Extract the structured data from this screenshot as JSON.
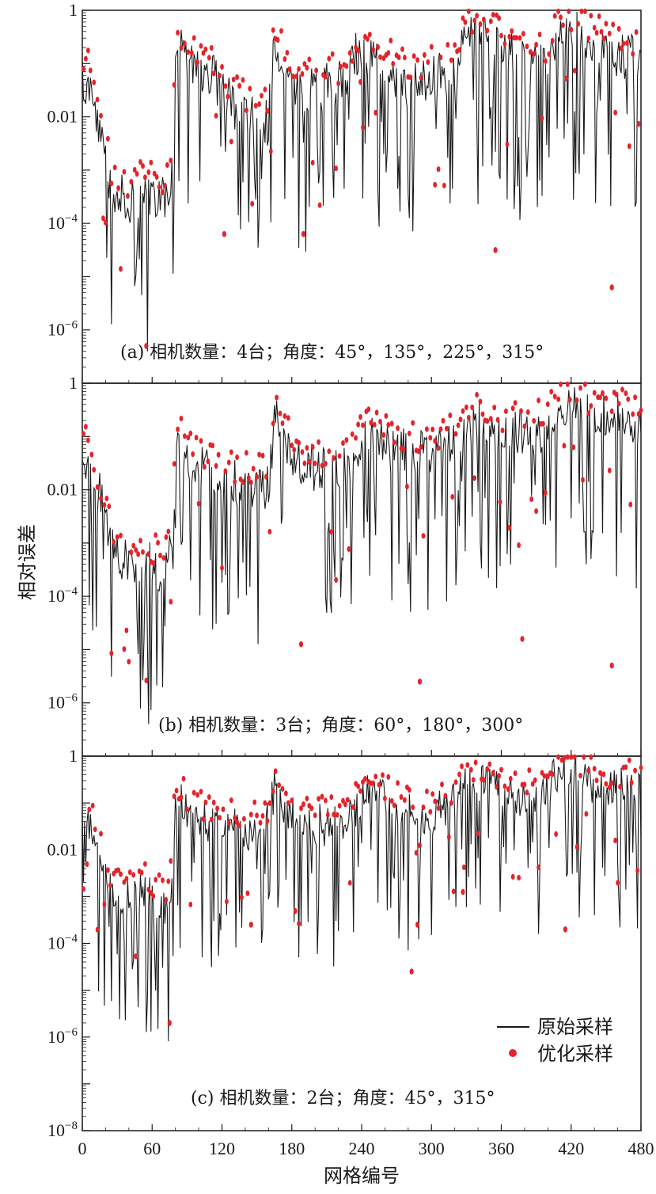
{
  "chart_data": {
    "type": "line",
    "ylabel": "相对误差",
    "xlabel": "网格编号",
    "x_ticks": [
      "0",
      "60",
      "120",
      "180",
      "240",
      "300",
      "360",
      "420",
      "480"
    ],
    "xlim": [
      0,
      480
    ],
    "yscale": "log",
    "legend": {
      "position": "bottom-right of panel (c)",
      "entries": [
        {
          "name": "原始采样",
          "style": "line",
          "color": "#1a1a1a"
        },
        {
          "name": "优化采样",
          "style": "dot",
          "color": "#e3242b"
        }
      ]
    },
    "panels": [
      {
        "id": "a",
        "caption": "(a) 相机数量：4台；角度：45°，135°，225°，315°",
        "ylim_exponent": [
          -7,
          0
        ],
        "y_ticks": [
          {
            "exp": 0,
            "text": "1"
          },
          {
            "exp": -2,
            "text": "0.01"
          },
          {
            "exp": -4,
            "base": "10",
            "sup": "−4"
          },
          {
            "exp": -6,
            "base": "10",
            "sup": "−6"
          }
        ],
        "original_envelope_log10": [
          [
            0,
            -1.1
          ],
          [
            8,
            -1.5
          ],
          [
            15,
            -2.0
          ],
          [
            25,
            -3.3
          ],
          [
            40,
            -3.5
          ],
          [
            55,
            -3.3
          ],
          [
            70,
            -3.5
          ],
          [
            78,
            -3.0
          ],
          [
            80,
            -0.6
          ],
          [
            90,
            -0.8
          ],
          [
            110,
            -1.1
          ],
          [
            130,
            -1.7
          ],
          [
            150,
            -2.0
          ],
          [
            160,
            -2.0
          ],
          [
            165,
            -0.6
          ],
          [
            180,
            -1.3
          ],
          [
            200,
            -1.4
          ],
          [
            220,
            -1.3
          ],
          [
            240,
            -0.6
          ],
          [
            260,
            -1.0
          ],
          [
            280,
            -1.3
          ],
          [
            300,
            -1.2
          ],
          [
            320,
            -1.0
          ],
          [
            330,
            -0.4
          ],
          [
            350,
            -0.5
          ],
          [
            380,
            -0.9
          ],
          [
            400,
            -1.0
          ],
          [
            410,
            -0.3
          ],
          [
            430,
            -0.4
          ],
          [
            450,
            -0.7
          ],
          [
            470,
            -0.8
          ],
          [
            480,
            -0.8
          ]
        ],
        "optimized_envelope_log10": [
          [
            0,
            -0.9
          ],
          [
            8,
            -1.3
          ],
          [
            15,
            -1.9
          ],
          [
            25,
            -3.1
          ],
          [
            40,
            -3.4
          ],
          [
            55,
            -3.2
          ],
          [
            70,
            -3.3
          ],
          [
            78,
            -3.0
          ],
          [
            80,
            -0.5
          ],
          [
            90,
            -0.8
          ],
          [
            110,
            -1.0
          ],
          [
            130,
            -1.6
          ],
          [
            150,
            -1.9
          ],
          [
            160,
            -1.9
          ],
          [
            165,
            -0.5
          ],
          [
            180,
            -1.2
          ],
          [
            200,
            -1.3
          ],
          [
            220,
            -1.2
          ],
          [
            240,
            -0.5
          ],
          [
            260,
            -0.9
          ],
          [
            280,
            -1.2
          ],
          [
            300,
            -1.1
          ],
          [
            320,
            -0.9
          ],
          [
            330,
            -0.3
          ],
          [
            350,
            -0.4
          ],
          [
            380,
            -0.8
          ],
          [
            400,
            -0.9
          ],
          [
            410,
            -0.2
          ],
          [
            430,
            -0.3
          ],
          [
            450,
            -0.6
          ],
          [
            470,
            -0.7
          ],
          [
            480,
            -0.7
          ]
        ],
        "outliers_log10": [
          [
            55,
            -6.3
          ],
          [
            122,
            -4.2
          ],
          [
            190,
            -4.2
          ],
          [
            355,
            -4.5
          ],
          [
            455,
            -5.2
          ]
        ]
      },
      {
        "id": "b",
        "caption": "(b) 相机数量：3台；角度：60°，180°，300°",
        "ylim_exponent": [
          -7,
          0
        ],
        "y_ticks": [
          {
            "exp": 0,
            "text": "1"
          },
          {
            "exp": -2,
            "text": "0.01"
          },
          {
            "exp": -4,
            "base": "10",
            "sup": "−4"
          },
          {
            "exp": -6,
            "base": "10",
            "sup": "−6"
          }
        ],
        "original_envelope_log10": [
          [
            0,
            -1.0
          ],
          [
            8,
            -1.8
          ],
          [
            15,
            -2.0
          ],
          [
            25,
            -3.0
          ],
          [
            40,
            -3.3
          ],
          [
            55,
            -3.3
          ],
          [
            70,
            -3.4
          ],
          [
            78,
            -3.0
          ],
          [
            80,
            -0.8
          ],
          [
            95,
            -1.4
          ],
          [
            120,
            -1.8
          ],
          [
            140,
            -1.8
          ],
          [
            160,
            -1.9
          ],
          [
            165,
            -0.6
          ],
          [
            185,
            -1.4
          ],
          [
            210,
            -1.6
          ],
          [
            230,
            -1.5
          ],
          [
            245,
            -0.8
          ],
          [
            265,
            -1.2
          ],
          [
            285,
            -1.2
          ],
          [
            300,
            -1.3
          ],
          [
            320,
            -1.0
          ],
          [
            330,
            -0.6
          ],
          [
            350,
            -0.8
          ],
          [
            380,
            -0.9
          ],
          [
            400,
            -0.8
          ],
          [
            410,
            -0.3
          ],
          [
            430,
            -0.5
          ],
          [
            450,
            -0.5
          ],
          [
            470,
            -0.6
          ],
          [
            480,
            -0.7
          ]
        ],
        "optimized_envelope_log10": [
          [
            0,
            -0.9
          ],
          [
            8,
            -1.6
          ],
          [
            15,
            -1.9
          ],
          [
            25,
            -2.9
          ],
          [
            40,
            -3.2
          ],
          [
            55,
            -3.2
          ],
          [
            70,
            -3.3
          ],
          [
            78,
            -3.0
          ],
          [
            80,
            -0.7
          ],
          [
            95,
            -1.3
          ],
          [
            120,
            -1.7
          ],
          [
            140,
            -1.7
          ],
          [
            160,
            -1.8
          ],
          [
            165,
            -0.5
          ],
          [
            185,
            -1.3
          ],
          [
            210,
            -1.5
          ],
          [
            230,
            -1.4
          ],
          [
            245,
            -0.7
          ],
          [
            265,
            -1.1
          ],
          [
            285,
            -1.1
          ],
          [
            300,
            -1.2
          ],
          [
            320,
            -0.9
          ],
          [
            330,
            -0.5
          ],
          [
            350,
            -0.7
          ],
          [
            380,
            -0.8
          ],
          [
            400,
            -0.7
          ],
          [
            410,
            -0.2
          ],
          [
            430,
            -0.4
          ],
          [
            450,
            -0.4
          ],
          [
            470,
            -0.5
          ],
          [
            480,
            -0.6
          ]
        ],
        "outliers_log10": [
          [
            188,
            -4.9
          ],
          [
            290,
            -5.6
          ],
          [
            455,
            -5.3
          ],
          [
            378,
            -4.8
          ]
        ]
      },
      {
        "id": "c",
        "caption": "(c) 相机数量：2台；角度：45°，315°",
        "ylim_exponent": [
          -8,
          0
        ],
        "y_ticks": [
          {
            "exp": 0,
            "text": "1"
          },
          {
            "exp": -2,
            "text": "0.01"
          },
          {
            "exp": -4,
            "base": "10",
            "sup": "−4"
          },
          {
            "exp": -6,
            "base": "10",
            "sup": "−6"
          },
          {
            "exp": -8,
            "base": "10",
            "sup": "−8"
          }
        ],
        "original_envelope_log10": [
          [
            0,
            -1.0
          ],
          [
            8,
            -1.5
          ],
          [
            15,
            -1.9
          ],
          [
            25,
            -2.8
          ],
          [
            40,
            -3.0
          ],
          [
            55,
            -2.8
          ],
          [
            65,
            -3.0
          ],
          [
            75,
            -3.2
          ],
          [
            80,
            -0.8
          ],
          [
            95,
            -1.2
          ],
          [
            120,
            -1.4
          ],
          [
            140,
            -1.5
          ],
          [
            160,
            -1.3
          ],
          [
            165,
            -0.6
          ],
          [
            185,
            -1.3
          ],
          [
            210,
            -1.4
          ],
          [
            230,
            -1.2
          ],
          [
            245,
            -0.5
          ],
          [
            265,
            -1.0
          ],
          [
            285,
            -1.2
          ],
          [
            300,
            -1.2
          ],
          [
            320,
            -0.9
          ],
          [
            330,
            -0.4
          ],
          [
            350,
            -0.6
          ],
          [
            380,
            -0.8
          ],
          [
            400,
            -0.7
          ],
          [
            410,
            -0.1
          ],
          [
            430,
            -0.4
          ],
          [
            450,
            -0.6
          ],
          [
            470,
            -0.6
          ],
          [
            480,
            -0.6
          ]
        ],
        "optimized_envelope_log10": [
          [
            0,
            -0.9
          ],
          [
            8,
            -1.4
          ],
          [
            15,
            -1.8
          ],
          [
            25,
            -2.7
          ],
          [
            40,
            -2.9
          ],
          [
            55,
            -2.7
          ],
          [
            65,
            -2.9
          ],
          [
            75,
            -3.1
          ],
          [
            80,
            -0.7
          ],
          [
            95,
            -1.1
          ],
          [
            120,
            -1.3
          ],
          [
            140,
            -1.4
          ],
          [
            160,
            -1.2
          ],
          [
            165,
            -0.5
          ],
          [
            185,
            -1.2
          ],
          [
            210,
            -1.3
          ],
          [
            230,
            -1.1
          ],
          [
            245,
            -0.4
          ],
          [
            265,
            -0.9
          ],
          [
            285,
            -1.1
          ],
          [
            300,
            -1.1
          ],
          [
            320,
            -0.8
          ],
          [
            330,
            -0.3
          ],
          [
            350,
            -0.5
          ],
          [
            380,
            -0.7
          ],
          [
            400,
            -0.6
          ],
          [
            410,
            0.0
          ],
          [
            430,
            -0.3
          ],
          [
            450,
            -0.5
          ],
          [
            470,
            -0.5
          ],
          [
            480,
            -0.5
          ]
        ],
        "outliers_log10": [
          [
            283,
            -4.6
          ],
          [
            327,
            -2.9
          ],
          [
            288,
            -3.6
          ],
          [
            75,
            -5.7
          ],
          [
            415,
            -3.7
          ],
          [
            145,
            -3.6
          ]
        ]
      }
    ]
  }
}
